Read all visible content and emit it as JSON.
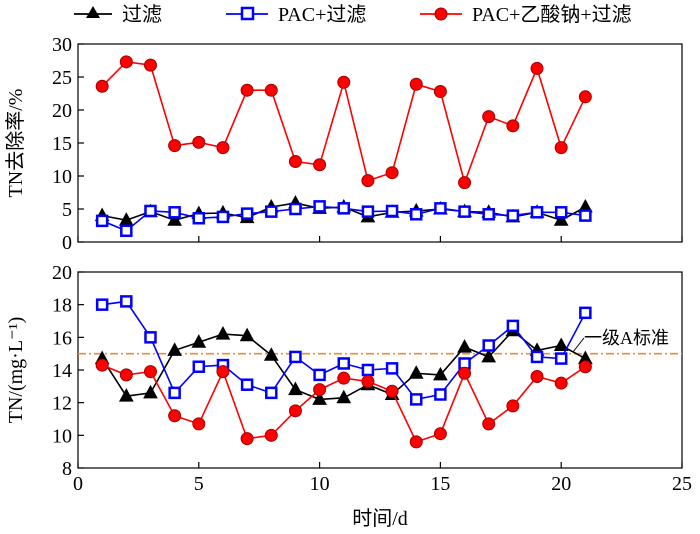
{
  "legend": {
    "items": [
      {
        "name": "过滤",
        "color": "#000000",
        "marker": "triangle"
      },
      {
        "name": "PAC+过滤",
        "color": "#0000ff",
        "marker": "square"
      },
      {
        "name": "PAC+乙酸钠+过滤",
        "color": "#ff0000",
        "marker": "circle"
      }
    ]
  },
  "chart_data": [
    {
      "type": "line",
      "ylabel": "TN去除率/%",
      "xlim": [
        0,
        25
      ],
      "ylim": [
        0,
        30
      ],
      "yticks": [
        0,
        5,
        10,
        15,
        20,
        25,
        30
      ],
      "x": [
        1,
        2,
        3,
        4,
        5,
        6,
        7,
        8,
        9,
        10,
        11,
        12,
        13,
        14,
        15,
        16,
        17,
        18,
        19,
        20,
        21
      ],
      "series": [
        {
          "name": "过滤",
          "color": "#000000",
          "marker": "triangle",
          "values": [
            4.0,
            3.3,
            4.6,
            3.3,
            4.3,
            4.4,
            3.7,
            5.3,
            5.9,
            5.1,
            5.3,
            3.8,
            4.5,
            4.7,
            5.0,
            4.6,
            4.5,
            3.8,
            4.5,
            3.3,
            5.3
          ]
        },
        {
          "name": "PAC+过滤",
          "color": "#0000ff",
          "marker": "square",
          "values": [
            3.2,
            1.7,
            4.7,
            4.5,
            3.6,
            3.8,
            4.3,
            4.6,
            5.0,
            5.4,
            5.1,
            4.6,
            4.7,
            4.2,
            5.1,
            4.6,
            4.2,
            4.0,
            4.5,
            4.5,
            4.0
          ]
        },
        {
          "name": "PAC+乙酸钠+过滤",
          "color": "#ff0000",
          "marker": "circle",
          "values": [
            23.6,
            27.3,
            26.8,
            14.6,
            15.1,
            14.3,
            23.0,
            23.0,
            12.2,
            11.7,
            24.2,
            9.3,
            10.5,
            23.9,
            22.8,
            9.0,
            19.0,
            17.6,
            26.3,
            14.3,
            22.0
          ]
        }
      ]
    },
    {
      "type": "line",
      "xlabel": "时间/d",
      "ylabel": "TN/(mg·L⁻¹)",
      "xlim": [
        0,
        25
      ],
      "ylim": [
        8,
        20
      ],
      "xticks": [
        0,
        5,
        10,
        15,
        20,
        25
      ],
      "yticks": [
        8,
        10,
        12,
        14,
        16,
        18,
        20
      ],
      "x": [
        1,
        2,
        3,
        4,
        5,
        6,
        7,
        8,
        9,
        10,
        11,
        12,
        13,
        14,
        15,
        16,
        17,
        18,
        19,
        20,
        21
      ],
      "reference_line": {
        "value": 15,
        "label": "一级A标准",
        "color": "#f28c28"
      },
      "series": [
        {
          "name": "过滤",
          "color": "#000000",
          "marker": "triangle",
          "values": [
            14.7,
            12.4,
            12.6,
            15.2,
            15.7,
            16.2,
            16.1,
            14.9,
            12.8,
            12.2,
            12.3,
            13.1,
            12.5,
            13.8,
            13.7,
            15.4,
            14.8,
            16.4,
            15.2,
            15.5,
            14.7
          ]
        },
        {
          "name": "PAC+过滤",
          "color": "#0000ff",
          "marker": "square",
          "values": [
            18.0,
            18.2,
            16.0,
            12.6,
            14.2,
            14.3,
            13.1,
            12.6,
            14.8,
            13.7,
            14.4,
            14.0,
            14.1,
            12.2,
            12.5,
            14.4,
            15.5,
            16.7,
            14.8,
            14.7,
            17.5
          ]
        },
        {
          "name": "PAC+乙酸钠+过滤",
          "color": "#ff0000",
          "marker": "circle",
          "values": [
            14.3,
            13.7,
            13.9,
            11.2,
            10.7,
            13.9,
            9.8,
            10.0,
            11.5,
            12.8,
            13.5,
            13.3,
            12.7,
            9.6,
            10.1,
            13.8,
            10.7,
            11.8,
            13.6,
            13.2,
            14.2
          ]
        }
      ]
    }
  ]
}
